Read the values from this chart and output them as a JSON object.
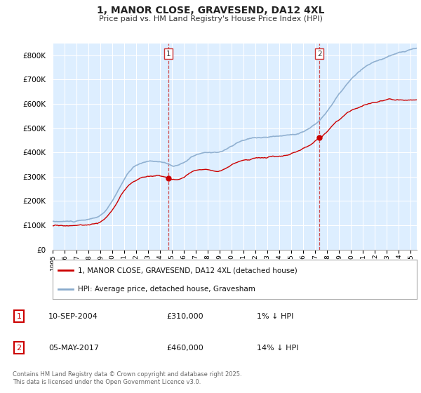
{
  "title": "1, MANOR CLOSE, GRAVESEND, DA12 4XL",
  "subtitle": "Price paid vs. HM Land Registry's House Price Index (HPI)",
  "property_label": "1, MANOR CLOSE, GRAVESEND, DA12 4XL (detached house)",
  "hpi_label": "HPI: Average price, detached house, Gravesham",
  "property_color": "#cc0000",
  "hpi_color": "#88aacc",
  "plot_bg": "#ddeeff",
  "ylim": [
    0,
    850000
  ],
  "yticks": [
    0,
    100000,
    200000,
    300000,
    400000,
    500000,
    600000,
    700000,
    800000
  ],
  "ytick_labels": [
    "£0",
    "£100K",
    "£200K",
    "£300K",
    "£400K",
    "£500K",
    "£600K",
    "£700K",
    "£800K"
  ],
  "xmin": 1995,
  "xmax": 2025.5,
  "sale1_year": 2004.69,
  "sale1_price": 310000,
  "sale1_label": "1",
  "sale1_date": "10-SEP-2004",
  "sale1_pct": "1% ↓ HPI",
  "sale2_year": 2017.34,
  "sale2_price": 460000,
  "sale2_label": "2",
  "sale2_date": "05-MAY-2017",
  "sale2_pct": "14% ↓ HPI",
  "footer": "Contains HM Land Registry data © Crown copyright and database right 2025.\nThis data is licensed under the Open Government Licence v3.0.",
  "vline_color": "#cc3333",
  "grid_color": "#ffffff",
  "legend_box_color": "#cc0000"
}
